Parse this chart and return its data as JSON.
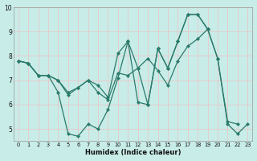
{
  "xlabel": "Humidex (Indice chaleur)",
  "bg_color": "#c8ece8",
  "line_color": "#2a7a6a",
  "grid_color": "#b0ddd8",
  "xlim": [
    -0.5,
    23.5
  ],
  "ylim": [
    4.5,
    10.0
  ],
  "yticks": [
    5,
    6,
    7,
    8,
    9,
    10
  ],
  "xticks": [
    0,
    1,
    2,
    3,
    4,
    5,
    6,
    7,
    8,
    9,
    10,
    11,
    12,
    13,
    14,
    15,
    16,
    17,
    18,
    19,
    20,
    21,
    22,
    23
  ],
  "series": [
    {
      "x": [
        0,
        1,
        2,
        3,
        4,
        5,
        6,
        7,
        8,
        9,
        10,
        11,
        12,
        13,
        14,
        15,
        16,
        17,
        18,
        19,
        20,
        21,
        22,
        23
      ],
      "y": [
        7.8,
        7.7,
        7.2,
        7.2,
        6.5,
        4.8,
        4.7,
        5.2,
        5.0,
        5.8,
        7.1,
        8.6,
        6.1,
        6.0,
        8.3,
        7.5,
        8.6,
        9.7,
        9.7,
        9.1,
        7.9,
        5.2,
        4.8,
        5.2
      ]
    },
    {
      "x": [
        0,
        1,
        2,
        3,
        4,
        5,
        6,
        7,
        8,
        9,
        10,
        11,
        12,
        13,
        14,
        15,
        16,
        17,
        18,
        19,
        20,
        21,
        22
      ],
      "y": [
        7.8,
        7.7,
        7.2,
        7.2,
        7.0,
        6.4,
        6.7,
        7.0,
        6.5,
        6.2,
        7.3,
        7.2,
        7.5,
        7.9,
        7.4,
        6.8,
        7.8,
        8.4,
        8.7,
        9.1,
        7.9,
        5.3,
        5.2
      ]
    },
    {
      "x": [
        0,
        1,
        2,
        3,
        4,
        5,
        6,
        7,
        8,
        9,
        10,
        11,
        12,
        13,
        14,
        15,
        16,
        17,
        18,
        19
      ],
      "y": [
        7.8,
        7.7,
        7.2,
        7.2,
        7.0,
        6.5,
        6.7,
        7.0,
        6.8,
        6.3,
        8.1,
        8.6,
        7.5,
        6.0,
        8.3,
        7.5,
        8.6,
        9.7,
        9.7,
        9.1
      ]
    }
  ]
}
